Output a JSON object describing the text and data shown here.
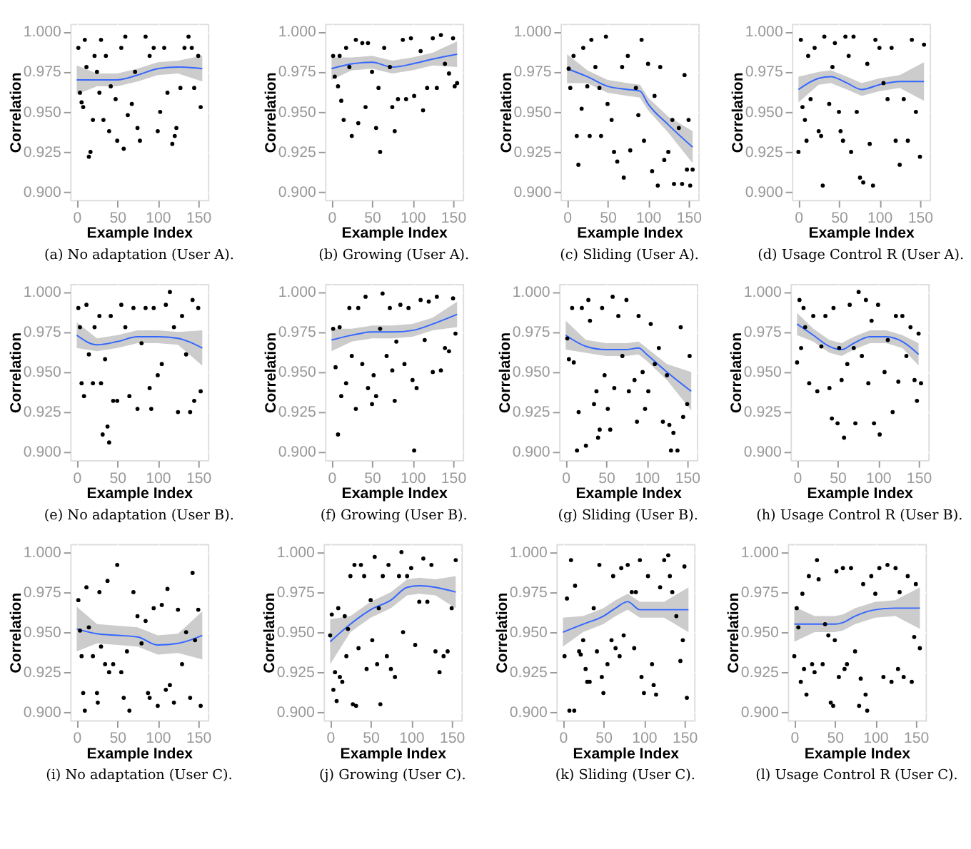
{
  "chart_data": [
    {
      "type": "scatter",
      "title": "(a) No adaptation (User A).",
      "xlabel": "Example Index",
      "ylabel": "Correlation",
      "xlim": [
        -8,
        162
      ],
      "ylim": [
        0.895,
        1.005
      ],
      "xticks": [
        0,
        50,
        100,
        150
      ],
      "yticks": [
        {
          "value": 0.9,
          "label": "0.900"
        },
        {
          "value": 0.925,
          "label": "0.925"
        },
        {
          "value": 0.95,
          "label": "0.950"
        },
        {
          "value": 0.975,
          "label": "0.975"
        },
        {
          "value": 1.0,
          "label": "1.000"
        }
      ],
      "grid": true,
      "series": [
        {
          "type": "scatter",
          "marker": "circle",
          "color": "#000000",
          "x": [
            2,
            4,
            6,
            8,
            10,
            12,
            15,
            17,
            20,
            22,
            25,
            28,
            30,
            33,
            36,
            40,
            42,
            48,
            50,
            55,
            58,
            60,
            63,
            68,
            72,
            75,
            78,
            85,
            90,
            95,
            100,
            103,
            108,
            112,
            118,
            121,
            123,
            128,
            133,
            138,
            142,
            145,
            150,
            153
          ],
          "values": [
            0.99,
            0.962,
            0.956,
            0.953,
            0.995,
            0.978,
            0.922,
            0.925,
            0.945,
            0.985,
            0.975,
            0.962,
            0.995,
            0.945,
            0.985,
            0.938,
            0.966,
            0.958,
            0.932,
            0.99,
            0.927,
            0.997,
            0.948,
            0.955,
            0.975,
            0.94,
            0.932,
            0.997,
            0.985,
            0.99,
            0.938,
            0.95,
            0.99,
            0.962,
            0.93,
            0.935,
            0.94,
            0.965,
            0.99,
            0.997,
            0.99,
            0.965,
            0.985,
            0.953
          ]
        },
        {
          "type": "line",
          "color": "#3366ff",
          "x": [
            0,
            25,
            50,
            75,
            100,
            125,
            155
          ],
          "values": [
            0.97,
            0.97,
            0.97,
            0.973,
            0.977,
            0.978,
            0.977
          ],
          "lower": [
            0.961,
            0.966,
            0.966,
            0.969,
            0.973,
            0.974,
            0.969
          ],
          "upper": [
            0.979,
            0.974,
            0.974,
            0.977,
            0.981,
            0.982,
            0.985
          ]
        }
      ]
    },
    {
      "type": "scatter",
      "title": "(b) Growing (User A).",
      "xlabel": "Example Index",
      "ylabel": "Correlation",
      "xlim": [
        -8,
        162
      ],
      "ylim": [
        0.895,
        1.005
      ],
      "xticks": [
        0,
        50,
        100,
        150
      ],
      "yticks": [
        {
          "value": 0.9,
          "label": "0.900"
        },
        {
          "value": 0.925,
          "label": "0.925"
        },
        {
          "value": 0.95,
          "label": "0.950"
        },
        {
          "value": 0.975,
          "label": "0.975"
        },
        {
          "value": 1.0,
          "label": "1.000"
        }
      ],
      "grid": true,
      "series": [
        {
          "type": "scatter",
          "marker": "circle",
          "color": "#000000",
          "x": [
            2,
            4,
            8,
            10,
            12,
            15,
            18,
            22,
            25,
            30,
            33,
            38,
            42,
            45,
            50,
            55,
            58,
            60,
            65,
            72,
            75,
            78,
            82,
            88,
            92,
            98,
            102,
            110,
            113,
            118,
            125,
            130,
            135,
            140,
            145,
            150,
            152,
            155
          ],
          "values": [
            0.985,
            0.972,
            0.966,
            0.985,
            0.957,
            0.945,
            0.99,
            0.978,
            0.935,
            0.995,
            0.943,
            0.993,
            0.953,
            0.993,
            0.975,
            0.94,
            0.965,
            0.925,
            0.99,
            0.978,
            0.953,
            0.938,
            0.958,
            0.995,
            0.958,
            0.996,
            0.96,
            0.988,
            0.951,
            0.965,
            0.996,
            0.965,
            0.998,
            0.98,
            0.974,
            0.996,
            0.966,
            0.968
          ]
        },
        {
          "type": "line",
          "color": "#3366ff",
          "x": [
            0,
            25,
            50,
            75,
            100,
            125,
            155
          ],
          "values": [
            0.977,
            0.98,
            0.981,
            0.978,
            0.98,
            0.983,
            0.986
          ],
          "lower": [
            0.97,
            0.976,
            0.977,
            0.974,
            0.976,
            0.979,
            0.978
          ],
          "upper": [
            0.984,
            0.984,
            0.985,
            0.982,
            0.984,
            0.987,
            0.994
          ]
        }
      ]
    },
    {
      "type": "scatter",
      "title": "(c) Sliding (User A).",
      "xlabel": "Example Index",
      "ylabel": "Correlation",
      "xlim": [
        -8,
        162
      ],
      "ylim": [
        0.895,
        1.005
      ],
      "xticks": [
        0,
        50,
        100,
        150
      ],
      "yticks": [
        {
          "value": 0.9,
          "label": "0.900"
        },
        {
          "value": 0.925,
          "label": "0.925"
        },
        {
          "value": 0.95,
          "label": "0.950"
        },
        {
          "value": 0.975,
          "label": "0.975"
        },
        {
          "value": 1.0,
          "label": "1.000"
        }
      ],
      "grid": true,
      "series": [
        {
          "type": "scatter",
          "marker": "circle",
          "color": "#000000",
          "x": [
            2,
            4,
            8,
            12,
            14,
            18,
            20,
            25,
            28,
            30,
            35,
            40,
            42,
            48,
            50,
            55,
            58,
            62,
            68,
            70,
            75,
            78,
            85,
            88,
            92,
            95,
            100,
            105,
            108,
            112,
            115,
            120,
            125,
            130,
            132,
            138,
            142,
            145,
            148,
            150,
            152,
            155
          ],
          "values": [
            0.977,
            0.965,
            0.985,
            0.935,
            0.917,
            0.952,
            0.99,
            0.966,
            0.935,
            0.995,
            0.978,
            0.965,
            0.935,
            0.997,
            0.955,
            0.945,
            0.925,
            0.919,
            0.978,
            0.909,
            0.985,
            0.926,
            0.965,
            0.948,
            0.995,
            0.932,
            0.98,
            0.913,
            0.96,
            0.904,
            0.978,
            0.92,
            0.925,
            0.945,
            0.905,
            0.94,
            0.905,
            0.973,
            0.914,
            0.945,
            0.904,
            0.914
          ]
        },
        {
          "type": "line",
          "color": "#3366ff",
          "x": [
            0,
            25,
            50,
            75,
            90,
            100,
            125,
            155
          ],
          "values": [
            0.977,
            0.972,
            0.966,
            0.964,
            0.963,
            0.955,
            0.942,
            0.928
          ],
          "lower": [
            0.968,
            0.968,
            0.962,
            0.96,
            0.959,
            0.951,
            0.937,
            0.918
          ],
          "upper": [
            0.986,
            0.976,
            0.97,
            0.968,
            0.967,
            0.959,
            0.947,
            0.938
          ]
        }
      ]
    },
    {
      "type": "scatter",
      "title": "(d) Usage Control R (User A).",
      "xlabel": "Example Index",
      "ylabel": "Correlation",
      "xlim": [
        -8,
        162
      ],
      "ylim": [
        0.895,
        1.005
      ],
      "xticks": [
        0,
        50,
        100,
        150
      ],
      "yticks": [
        {
          "value": 0.9,
          "label": "0.900"
        },
        {
          "value": 0.925,
          "label": "0.925"
        },
        {
          "value": 0.95,
          "label": "0.950"
        },
        {
          "value": 0.975,
          "label": "0.975"
        },
        {
          "value": 1.0,
          "label": "1.000"
        }
      ],
      "grid": true,
      "series": [
        {
          "type": "scatter",
          "marker": "circle",
          "color": "#000000",
          "x": [
            0,
            3,
            5,
            8,
            10,
            12,
            15,
            20,
            25,
            28,
            30,
            32,
            38,
            42,
            45,
            50,
            52,
            55,
            58,
            62,
            65,
            68,
            72,
            76,
            80,
            85,
            88,
            92,
            95,
            100,
            105,
            110,
            115,
            120,
            125,
            130,
            135,
            140,
            145,
            150,
            155
          ],
          "values": [
            0.925,
            0.995,
            0.953,
            0.945,
            0.932,
            0.985,
            0.958,
            0.99,
            0.938,
            0.935,
            0.904,
            0.997,
            0.955,
            0.978,
            0.993,
            0.95,
            0.938,
            0.932,
            0.997,
            0.985,
            0.925,
            0.997,
            0.95,
            0.909,
            0.906,
            0.98,
            0.93,
            0.904,
            0.995,
            0.99,
            0.968,
            0.958,
            0.99,
            0.932,
            0.917,
            0.958,
            0.932,
            0.995,
            0.95,
            0.922,
            0.992
          ]
        },
        {
          "type": "line",
          "color": "#3366ff",
          "x": [
            0,
            25,
            40,
            60,
            78,
            100,
            125,
            155
          ],
          "values": [
            0.964,
            0.971,
            0.972,
            0.968,
            0.964,
            0.967,
            0.969,
            0.969
          ],
          "lower": [
            0.956,
            0.967,
            0.968,
            0.964,
            0.96,
            0.963,
            0.965,
            0.957
          ],
          "upper": [
            0.972,
            0.975,
            0.976,
            0.972,
            0.968,
            0.971,
            0.973,
            0.981
          ]
        }
      ]
    },
    {
      "type": "scatter",
      "title": "(e) No adaptation (User B).",
      "xlabel": "Example Index",
      "ylabel": "Correlation",
      "xlim": [
        -8,
        162
      ],
      "ylim": [
        0.895,
        1.005
      ],
      "xticks": [
        0,
        50,
        100,
        150
      ],
      "yticks": [
        {
          "value": 0.9,
          "label": "0.900"
        },
        {
          "value": 0.925,
          "label": "0.925"
        },
        {
          "value": 0.95,
          "label": "0.950"
        },
        {
          "value": 0.975,
          "label": "0.975"
        },
        {
          "value": 1.0,
          "label": "1.000"
        }
      ],
      "grid": true,
      "series": [
        {
          "type": "scatter",
          "marker": "circle",
          "color": "#000000",
          "x": [
            2,
            4,
            6,
            9,
            12,
            15,
            20,
            22,
            28,
            30,
            32,
            35,
            38,
            40,
            42,
            45,
            50,
            55,
            60,
            65,
            70,
            75,
            80,
            85,
            90,
            92,
            95,
            100,
            105,
            110,
            115,
            120,
            125,
            130,
            135,
            140,
            143,
            145,
            150,
            153
          ],
          "values": [
            0.99,
            0.978,
            0.943,
            0.935,
            0.992,
            0.961,
            0.943,
            0.978,
            0.985,
            0.943,
            0.911,
            0.958,
            0.916,
            0.906,
            0.985,
            0.932,
            0.932,
            0.992,
            0.978,
            0.935,
            0.99,
            0.927,
            0.968,
            0.99,
            0.94,
            0.927,
            0.99,
            0.948,
            0.955,
            0.992,
            1.0,
            0.978,
            0.925,
            0.985,
            0.961,
            0.925,
            0.995,
            0.932,
            0.99,
            0.938
          ]
        },
        {
          "type": "line",
          "color": "#3366ff",
          "x": [
            0,
            25,
            50,
            75,
            100,
            125,
            155
          ],
          "values": [
            0.973,
            0.967,
            0.969,
            0.972,
            0.972,
            0.971,
            0.965
          ],
          "lower": [
            0.965,
            0.963,
            0.965,
            0.968,
            0.968,
            0.967,
            0.954
          ],
          "upper": [
            0.981,
            0.971,
            0.973,
            0.976,
            0.976,
            0.975,
            0.976
          ]
        }
      ]
    },
    {
      "type": "scatter",
      "title": "(f) Growing (User B).",
      "xlabel": "Example Index",
      "ylabel": "Correlation",
      "xlim": [
        -8,
        162
      ],
      "ylim": [
        0.895,
        1.005
      ],
      "xticks": [
        0,
        50,
        100,
        150
      ],
      "yticks": [
        {
          "value": 0.9,
          "label": "0.900"
        },
        {
          "value": 0.925,
          "label": "0.925"
        },
        {
          "value": 0.95,
          "label": "0.950"
        },
        {
          "value": 0.975,
          "label": "0.975"
        },
        {
          "value": 1.0,
          "label": "1.000"
        }
      ],
      "grid": true,
      "series": [
        {
          "type": "scatter",
          "marker": "circle",
          "color": "#000000",
          "x": [
            2,
            5,
            8,
            10,
            12,
            18,
            22,
            25,
            30,
            33,
            38,
            42,
            45,
            50,
            52,
            55,
            60,
            63,
            68,
            72,
            75,
            78,
            80,
            85,
            90,
            95,
            100,
            102,
            105,
            110,
            115,
            120,
            125,
            130,
            135,
            140,
            145,
            150,
            153
          ],
          "values": [
            0.977,
            0.953,
            0.911,
            0.978,
            0.935,
            0.943,
            0.99,
            0.96,
            0.927,
            0.99,
            0.955,
            0.997,
            0.94,
            0.93,
            0.948,
            0.935,
            0.977,
            0.999,
            0.96,
            0.99,
            0.951,
            0.932,
            0.969,
            0.992,
            0.955,
            0.99,
            0.945,
            0.901,
            0.94,
            0.995,
            0.97,
            0.994,
            0.95,
            0.997,
            0.951,
            0.965,
            0.963,
            0.996,
            0.974
          ]
        },
        {
          "type": "line",
          "color": "#3366ff",
          "x": [
            0,
            25,
            50,
            75,
            100,
            125,
            155
          ],
          "values": [
            0.97,
            0.973,
            0.975,
            0.975,
            0.976,
            0.98,
            0.986
          ],
          "lower": [
            0.963,
            0.969,
            0.971,
            0.971,
            0.972,
            0.976,
            0.978
          ],
          "upper": [
            0.977,
            0.977,
            0.979,
            0.979,
            0.98,
            0.984,
            0.994
          ]
        }
      ]
    },
    {
      "type": "scatter",
      "title": "(g) Sliding (User B).",
      "xlabel": "Example Index",
      "ylabel": "Correlation",
      "xlim": [
        -8,
        162
      ],
      "ylim": [
        0.895,
        1.005
      ],
      "xticks": [
        0,
        50,
        100,
        150
      ],
      "yticks": [
        {
          "value": 0.9,
          "label": "0.900"
        },
        {
          "value": 0.925,
          "label": "0.925"
        },
        {
          "value": 0.95,
          "label": "0.950"
        },
        {
          "value": 0.975,
          "label": "0.975"
        },
        {
          "value": 1.0,
          "label": "1.000"
        }
      ],
      "grid": true,
      "series": [
        {
          "type": "scatter",
          "marker": "circle",
          "color": "#000000",
          "x": [
            2,
            4,
            8,
            10,
            14,
            16,
            20,
            25,
            28,
            30,
            35,
            38,
            40,
            42,
            45,
            48,
            52,
            55,
            58,
            60,
            65,
            70,
            75,
            78,
            85,
            88,
            90,
            95,
            98,
            102,
            105,
            110,
            115,
            120,
            125,
            128,
            130,
            133,
            138,
            142,
            145,
            150,
            153
          ],
          "values": [
            0.971,
            0.958,
            0.99,
            0.956,
            0.901,
            0.925,
            0.99,
            0.904,
            0.995,
            0.982,
            0.93,
            0.938,
            0.909,
            0.914,
            0.99,
            0.948,
            0.927,
            0.914,
            0.997,
            0.94,
            0.985,
            0.96,
            0.995,
            0.938,
            0.945,
            0.919,
            0.985,
            0.95,
            0.927,
            0.938,
            0.98,
            0.955,
            0.965,
            0.919,
            0.948,
            0.917,
            0.901,
            0.912,
            0.901,
            0.978,
            0.922,
            0.93,
            0.96
          ]
        },
        {
          "type": "line",
          "color": "#3366ff",
          "x": [
            0,
            25,
            50,
            75,
            90,
            100,
            125,
            155
          ],
          "values": [
            0.973,
            0.966,
            0.964,
            0.964,
            0.965,
            0.961,
            0.95,
            0.938
          ],
          "lower": [
            0.964,
            0.962,
            0.96,
            0.96,
            0.961,
            0.957,
            0.945,
            0.926
          ],
          "upper": [
            0.982,
            0.97,
            0.968,
            0.968,
            0.969,
            0.965,
            0.955,
            0.95
          ]
        }
      ]
    },
    {
      "type": "scatter",
      "title": "(h) Usage Control R (User B).",
      "xlabel": "Example Index",
      "ylabel": "Correlation",
      "xlim": [
        -8,
        162
      ],
      "ylim": [
        0.895,
        1.005
      ],
      "xticks": [
        0,
        50,
        100,
        150
      ],
      "yticks": [
        {
          "value": 0.9,
          "label": "0.900"
        },
        {
          "value": 0.925,
          "label": "0.925"
        },
        {
          "value": 0.95,
          "label": "0.950"
        },
        {
          "value": 0.975,
          "label": "0.975"
        },
        {
          "value": 1.0,
          "label": "1.000"
        }
      ],
      "grid": true,
      "series": [
        {
          "type": "scatter",
          "marker": "circle",
          "color": "#000000",
          "x": [
            0,
            3,
            5,
            8,
            10,
            15,
            20,
            25,
            30,
            35,
            40,
            43,
            45,
            50,
            52,
            55,
            58,
            62,
            65,
            70,
            72,
            76,
            80,
            85,
            88,
            92,
            95,
            100,
            102,
            108,
            112,
            118,
            122,
            125,
            130,
            135,
            140,
            145,
            148,
            150,
            153
          ],
          "values": [
            0.956,
            0.995,
            0.965,
            0.99,
            0.978,
            0.943,
            0.985,
            0.938,
            0.966,
            0.985,
            0.94,
            0.921,
            0.99,
            0.918,
            0.965,
            0.945,
            0.909,
            0.955,
            0.992,
            0.965,
            0.918,
            1.0,
            0.96,
            0.995,
            0.943,
            0.982,
            0.918,
            0.992,
            0.911,
            0.95,
            0.97,
            0.925,
            0.985,
            0.944,
            0.985,
            0.96,
            0.978,
            0.945,
            0.932,
            0.974,
            0.943
          ]
        },
        {
          "type": "line",
          "color": "#3366ff",
          "x": [
            0,
            20,
            40,
            55,
            70,
            90,
            110,
            130,
            150
          ],
          "values": [
            0.98,
            0.973,
            0.966,
            0.964,
            0.968,
            0.972,
            0.972,
            0.969,
            0.961
          ],
          "lower": [
            0.973,
            0.969,
            0.962,
            0.96,
            0.964,
            0.968,
            0.968,
            0.965,
            0.954
          ],
          "upper": [
            0.987,
            0.977,
            0.97,
            0.968,
            0.972,
            0.976,
            0.976,
            0.973,
            0.968
          ]
        }
      ]
    },
    {
      "type": "scatter",
      "title": "(i) No adaptation (User C).",
      "xlabel": "Example Index",
      "ylabel": "Correlation",
      "xlim": [
        -8,
        162
      ],
      "ylim": [
        0.895,
        1.005
      ],
      "xticks": [
        0,
        50,
        100,
        150
      ],
      "yticks": [
        {
          "value": 0.9,
          "label": "0.900"
        },
        {
          "value": 0.925,
          "label": "0.925"
        },
        {
          "value": 0.95,
          "label": "0.950"
        },
        {
          "value": 0.975,
          "label": "0.975"
        },
        {
          "value": 1.0,
          "label": "1.000"
        }
      ],
      "grid": true,
      "series": [
        {
          "type": "scatter",
          "marker": "circle",
          "color": "#000000",
          "x": [
            2,
            4,
            6,
            8,
            10,
            12,
            15,
            20,
            25,
            26,
            28,
            30,
            35,
            38,
            40,
            45,
            50,
            55,
            58,
            62,
            65,
            70,
            75,
            80,
            85,
            88,
            90,
            95,
            100,
            105,
            110,
            112,
            115,
            120,
            125,
            130,
            135,
            140,
            143,
            146,
            150,
            153
          ],
          "values": [
            0.97,
            0.951,
            0.935,
            0.912,
            0.901,
            0.978,
            0.953,
            0.935,
            0.912,
            0.906,
            0.975,
            0.941,
            0.93,
            0.982,
            0.925,
            0.93,
            0.992,
            0.925,
            0.909,
            0.938,
            0.901,
            0.975,
            0.96,
            0.943,
            0.957,
            0.912,
            0.909,
            0.965,
            0.904,
            0.967,
            0.914,
            0.977,
            0.917,
            0.906,
            0.964,
            0.93,
            0.95,
            0.909,
            0.987,
            0.945,
            0.964,
            0.904
          ]
        },
        {
          "type": "line",
          "color": "#3366ff",
          "x": [
            0,
            25,
            50,
            75,
            100,
            125,
            155
          ],
          "values": [
            0.952,
            0.949,
            0.948,
            0.947,
            0.942,
            0.943,
            0.948
          ],
          "lower": [
            0.938,
            0.943,
            0.942,
            0.941,
            0.936,
            0.937,
            0.933
          ],
          "upper": [
            0.966,
            0.955,
            0.954,
            0.953,
            0.948,
            0.949,
            0.963
          ]
        }
      ]
    },
    {
      "type": "scatter",
      "title": "(j) Growing (User C).",
      "xlabel": "Example Index",
      "ylabel": "Correlation",
      "xlim": [
        -8,
        162
      ],
      "ylim": [
        0.895,
        1.005
      ],
      "xticks": [
        0,
        50,
        100,
        150
      ],
      "yticks": [
        {
          "value": 0.9,
          "label": "0.900"
        },
        {
          "value": 0.925,
          "label": "0.925"
        },
        {
          "value": 0.95,
          "label": "0.950"
        },
        {
          "value": 0.975,
          "label": "0.975"
        },
        {
          "value": 1.0,
          "label": "1.000"
        }
      ],
      "grid": true,
      "series": [
        {
          "type": "scatter",
          "marker": "circle",
          "color": "#000000",
          "x": [
            0,
            2,
            4,
            6,
            8,
            10,
            12,
            15,
            18,
            20,
            22,
            25,
            28,
            30,
            32,
            35,
            38,
            42,
            45,
            50,
            52,
            55,
            58,
            60,
            62,
            65,
            70,
            72,
            75,
            80,
            85,
            88,
            90,
            95,
            100,
            105,
            110,
            115,
            120,
            125,
            130,
            135,
            140,
            145,
            150,
            155
          ],
          "values": [
            0.948,
            0.961,
            0.914,
            0.925,
            0.907,
            0.965,
            0.922,
            0.919,
            0.96,
            0.935,
            0.952,
            0.985,
            0.905,
            0.992,
            0.904,
            0.94,
            0.992,
            0.985,
            0.927,
            0.97,
            0.945,
            0.997,
            0.93,
            0.965,
            0.905,
            0.985,
            0.935,
            0.992,
            0.927,
            0.922,
            0.985,
            1.0,
            0.95,
            0.985,
            0.99,
            0.942,
            0.969,
            0.996,
            0.969,
            0.992,
            0.938,
            0.925,
            0.935,
            0.938,
            0.965,
            0.995
          ]
        },
        {
          "type": "line",
          "color": "#3366ff",
          "x": [
            0,
            25,
            50,
            75,
            95,
            110,
            130,
            155
          ],
          "values": [
            0.944,
            0.955,
            0.964,
            0.97,
            0.978,
            0.979,
            0.978,
            0.975
          ],
          "lower": [
            0.93,
            0.95,
            0.959,
            0.965,
            0.973,
            0.974,
            0.973,
            0.965
          ],
          "upper": [
            0.958,
            0.96,
            0.969,
            0.975,
            0.983,
            0.984,
            0.983,
            0.985
          ]
        }
      ]
    },
    {
      "type": "scatter",
      "title": "(k) Sliding (User C).",
      "xlabel": "Example Index",
      "ylabel": "Correlation",
      "xlim": [
        -8,
        162
      ],
      "ylim": [
        0.895,
        1.005
      ],
      "xticks": [
        0,
        50,
        100,
        150
      ],
      "yticks": [
        {
          "value": 0.9,
          "label": "0.900"
        },
        {
          "value": 0.925,
          "label": "0.925"
        },
        {
          "value": 0.95,
          "label": "0.950"
        },
        {
          "value": 0.975,
          "label": "0.975"
        },
        {
          "value": 1.0,
          "label": "1.000"
        }
      ],
      "grid": true,
      "series": [
        {
          "type": "scatter",
          "marker": "circle",
          "color": "#000000",
          "x": [
            2,
            5,
            8,
            10,
            14,
            15,
            20,
            22,
            25,
            28,
            30,
            33,
            38,
            42,
            45,
            48,
            50,
            55,
            60,
            62,
            65,
            70,
            72,
            75,
            80,
            85,
            88,
            90,
            95,
            97,
            100,
            105,
            110,
            112,
            115,
            120,
            125,
            130,
            132,
            135,
            140,
            145,
            148,
            150,
            153
          ],
          "values": [
            0.935,
            0.971,
            0.901,
            0.995,
            0.901,
            0.979,
            0.938,
            0.936,
            0.945,
            0.927,
            0.919,
            0.919,
            0.965,
            0.938,
            0.992,
            0.922,
            0.912,
            0.93,
            0.945,
            0.985,
            0.94,
            0.935,
            0.99,
            0.948,
            0.992,
            0.975,
            0.94,
            0.975,
            0.995,
            0.922,
            0.912,
            0.985,
            0.93,
            0.917,
            0.911,
            0.978,
            0.995,
            0.998,
            0.985,
            0.975,
            0.96,
            0.932,
            0.945,
            0.991,
            0.909
          ]
        },
        {
          "type": "line",
          "color": "#3366ff",
          "x": [
            0,
            25,
            50,
            65,
            80,
            95,
            125,
            155
          ],
          "values": [
            0.95,
            0.955,
            0.96,
            0.965,
            0.969,
            0.964,
            0.964,
            0.964
          ],
          "lower": [
            0.941,
            0.95,
            0.955,
            0.96,
            0.964,
            0.959,
            0.959,
            0.95
          ],
          "upper": [
            0.959,
            0.96,
            0.965,
            0.97,
            0.974,
            0.969,
            0.969,
            0.978
          ]
        }
      ]
    },
    {
      "type": "scatter",
      "title": "(l) Usage Control R (User C).",
      "xlabel": "Example Index",
      "ylabel": "Correlation",
      "xlim": [
        -8,
        162
      ],
      "ylim": [
        0.895,
        1.005
      ],
      "xticks": [
        0,
        50,
        100,
        150
      ],
      "yticks": [
        {
          "value": 0.9,
          "label": "0.900"
        },
        {
          "value": 0.925,
          "label": "0.925"
        },
        {
          "value": 0.95,
          "label": "0.950"
        },
        {
          "value": 0.975,
          "label": "0.975"
        },
        {
          "value": 1.0,
          "label": "1.000"
        }
      ],
      "grid": true,
      "series": [
        {
          "type": "scatter",
          "marker": "circle",
          "color": "#000000",
          "x": [
            0,
            3,
            5,
            8,
            10,
            12,
            15,
            18,
            22,
            25,
            28,
            30,
            35,
            38,
            42,
            45,
            48,
            50,
            52,
            55,
            60,
            62,
            65,
            70,
            75,
            80,
            82,
            85,
            88,
            90,
            95,
            100,
            105,
            110,
            115,
            120,
            125,
            128,
            130,
            135,
            140,
            145,
            148,
            150,
            155
          ],
          "values": [
            0.935,
            0.965,
            0.953,
            0.919,
            0.974,
            0.927,
            0.911,
            0.985,
            0.93,
            0.925,
            0.995,
            0.983,
            0.93,
            0.955,
            0.948,
            0.906,
            0.904,
            0.945,
            0.988,
            0.922,
            0.99,
            0.927,
            0.93,
            0.99,
            0.938,
            0.904,
            0.921,
            0.98,
            0.911,
            0.901,
            0.985,
            0.974,
            0.99,
            0.922,
            0.992,
            0.919,
            0.99,
            0.927,
            0.975,
            0.922,
            0.985,
            0.919,
            0.947,
            0.98,
            0.94
          ]
        },
        {
          "type": "line",
          "color": "#3366ff",
          "x": [
            0,
            25,
            50,
            60,
            75,
            100,
            125,
            155
          ],
          "values": [
            0.955,
            0.955,
            0.955,
            0.956,
            0.96,
            0.964,
            0.965,
            0.965
          ],
          "lower": [
            0.944,
            0.95,
            0.95,
            0.951,
            0.955,
            0.959,
            0.96,
            0.952
          ],
          "upper": [
            0.966,
            0.96,
            0.96,
            0.961,
            0.965,
            0.969,
            0.97,
            0.978
          ]
        }
      ]
    }
  ]
}
